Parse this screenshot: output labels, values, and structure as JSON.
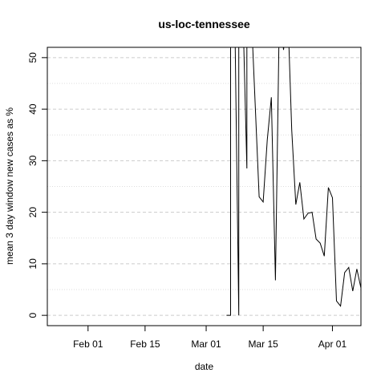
{
  "chart_data": {
    "type": "line",
    "title": "us-loc-tennessee",
    "xlabel": "date",
    "ylabel": "mean  3  day window new cases as %",
    "x_range": [
      "2020-01-22",
      "2020-04-08"
    ],
    "ylim": [
      -2,
      52
    ],
    "x_ticks": [
      {
        "date": "2020-02-01",
        "label": "Feb 01"
      },
      {
        "date": "2020-02-15",
        "label": "Feb 15"
      },
      {
        "date": "2020-03-01",
        "label": "Mar 01"
      },
      {
        "date": "2020-03-15",
        "label": "Mar 15"
      },
      {
        "date": "2020-04-01",
        "label": "Apr 01"
      }
    ],
    "y_ticks": [
      0,
      10,
      20,
      30,
      40,
      50
    ],
    "y_minor_grid": [
      5,
      15,
      25,
      35,
      45
    ],
    "grid": "dashed-horizontal",
    "line_color": "#000000",
    "series": [
      {
        "points": [
          [
            "2020-03-06",
            0
          ],
          [
            "2020-03-07",
            0
          ],
          [
            "2020-03-07",
            60
          ],
          [
            "2020-03-08",
            60
          ],
          [
            "2020-03-09",
            0
          ],
          [
            "2020-03-09",
            60
          ],
          [
            "2020-03-10",
            60
          ],
          [
            "2020-03-11",
            28.5
          ],
          [
            "2020-03-11",
            60
          ],
          [
            "2020-03-12",
            60
          ],
          [
            "2020-03-14",
            23
          ],
          [
            "2020-03-15",
            22
          ],
          [
            "2020-03-16",
            34
          ],
          [
            "2020-03-17",
            42.3
          ],
          [
            "2020-03-18",
            6.8
          ],
          [
            "2020-03-19",
            60
          ],
          [
            "2020-03-20",
            51.5
          ],
          [
            "2020-03-21",
            60
          ],
          [
            "2020-03-22",
            36
          ],
          [
            "2020-03-23",
            21.5
          ],
          [
            "2020-03-24",
            25.8
          ],
          [
            "2020-03-25",
            18.7
          ],
          [
            "2020-03-26",
            19.8
          ],
          [
            "2020-03-27",
            20
          ],
          [
            "2020-03-28",
            14.8
          ],
          [
            "2020-03-29",
            14
          ],
          [
            "2020-03-30",
            11.5
          ],
          [
            "2020-03-31",
            24.8
          ],
          [
            "2020-04-01",
            22.8
          ],
          [
            "2020-04-02",
            2.8
          ],
          [
            "2020-04-03",
            1.8
          ],
          [
            "2020-04-04",
            8.3
          ],
          [
            "2020-04-05",
            9.3
          ],
          [
            "2020-04-06",
            4.7
          ],
          [
            "2020-04-07",
            9
          ],
          [
            "2020-04-08",
            5.3
          ],
          [
            "2020-04-09",
            6.2
          ]
        ]
      }
    ]
  }
}
